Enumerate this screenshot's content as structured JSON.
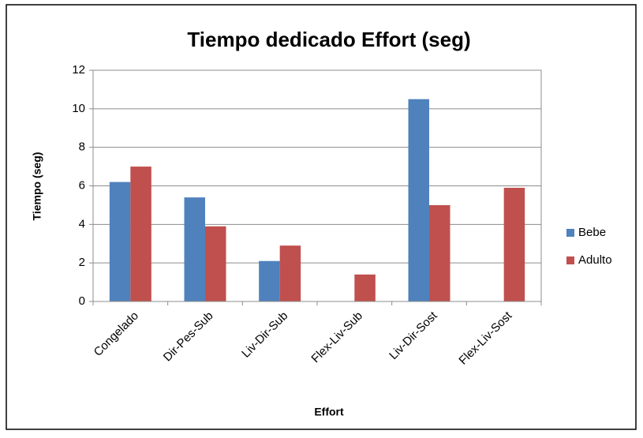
{
  "chart_data": {
    "type": "bar",
    "title": "Tiempo dedicado Effort (seg)",
    "x_label": "Effort",
    "y_label": "Tiempo (seg)",
    "categories": [
      "Congelado",
      "Dir-Pes-Sub",
      "Liv-Dir-Sub",
      "Flex-Liv-Sub",
      "Liv-Dir-Sost",
      "Flex-Liv-Sost"
    ],
    "series": [
      {
        "name": "Bebe",
        "color": "#4f81bd",
        "values": [
          6.2,
          5.4,
          2.1,
          0,
          10.5,
          0
        ]
      },
      {
        "name": "Adulto",
        "color": "#c0504d",
        "values": [
          7.0,
          3.9,
          2.9,
          1.4,
          5.0,
          5.9
        ]
      }
    ],
    "ylim": [
      0,
      12
    ],
    "yticks": [
      0,
      2,
      4,
      6,
      8,
      10,
      12
    ],
    "grid": true,
    "legend": "right"
  }
}
